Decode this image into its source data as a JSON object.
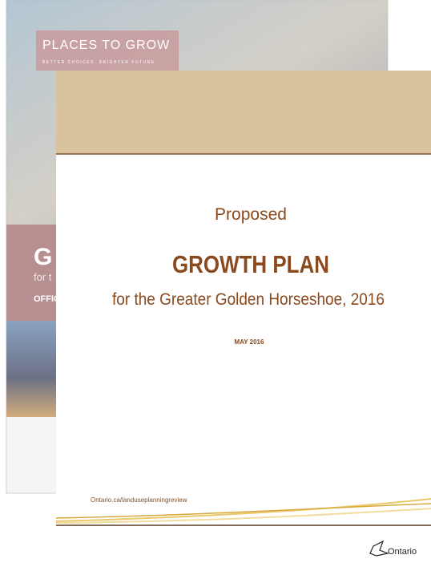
{
  "back_cover": {
    "banner_title": "PLACES TO GROW",
    "banner_tagline": "BETTER CHOICES. BRIGHTER FUTURE.",
    "title_fragment": "G",
    "subtitle_fragment": "for t",
    "label_fragment": "OFFIC"
  },
  "front_cover": {
    "kicker": "Proposed",
    "title": "GROWTH PLAN",
    "subtitle": "for the Greater Golden Horseshoe, 2016",
    "date": "MAY 2016",
    "url": "Ontario.ca/landuseplanningreview"
  },
  "logo": {
    "text": "Ontario"
  }
}
